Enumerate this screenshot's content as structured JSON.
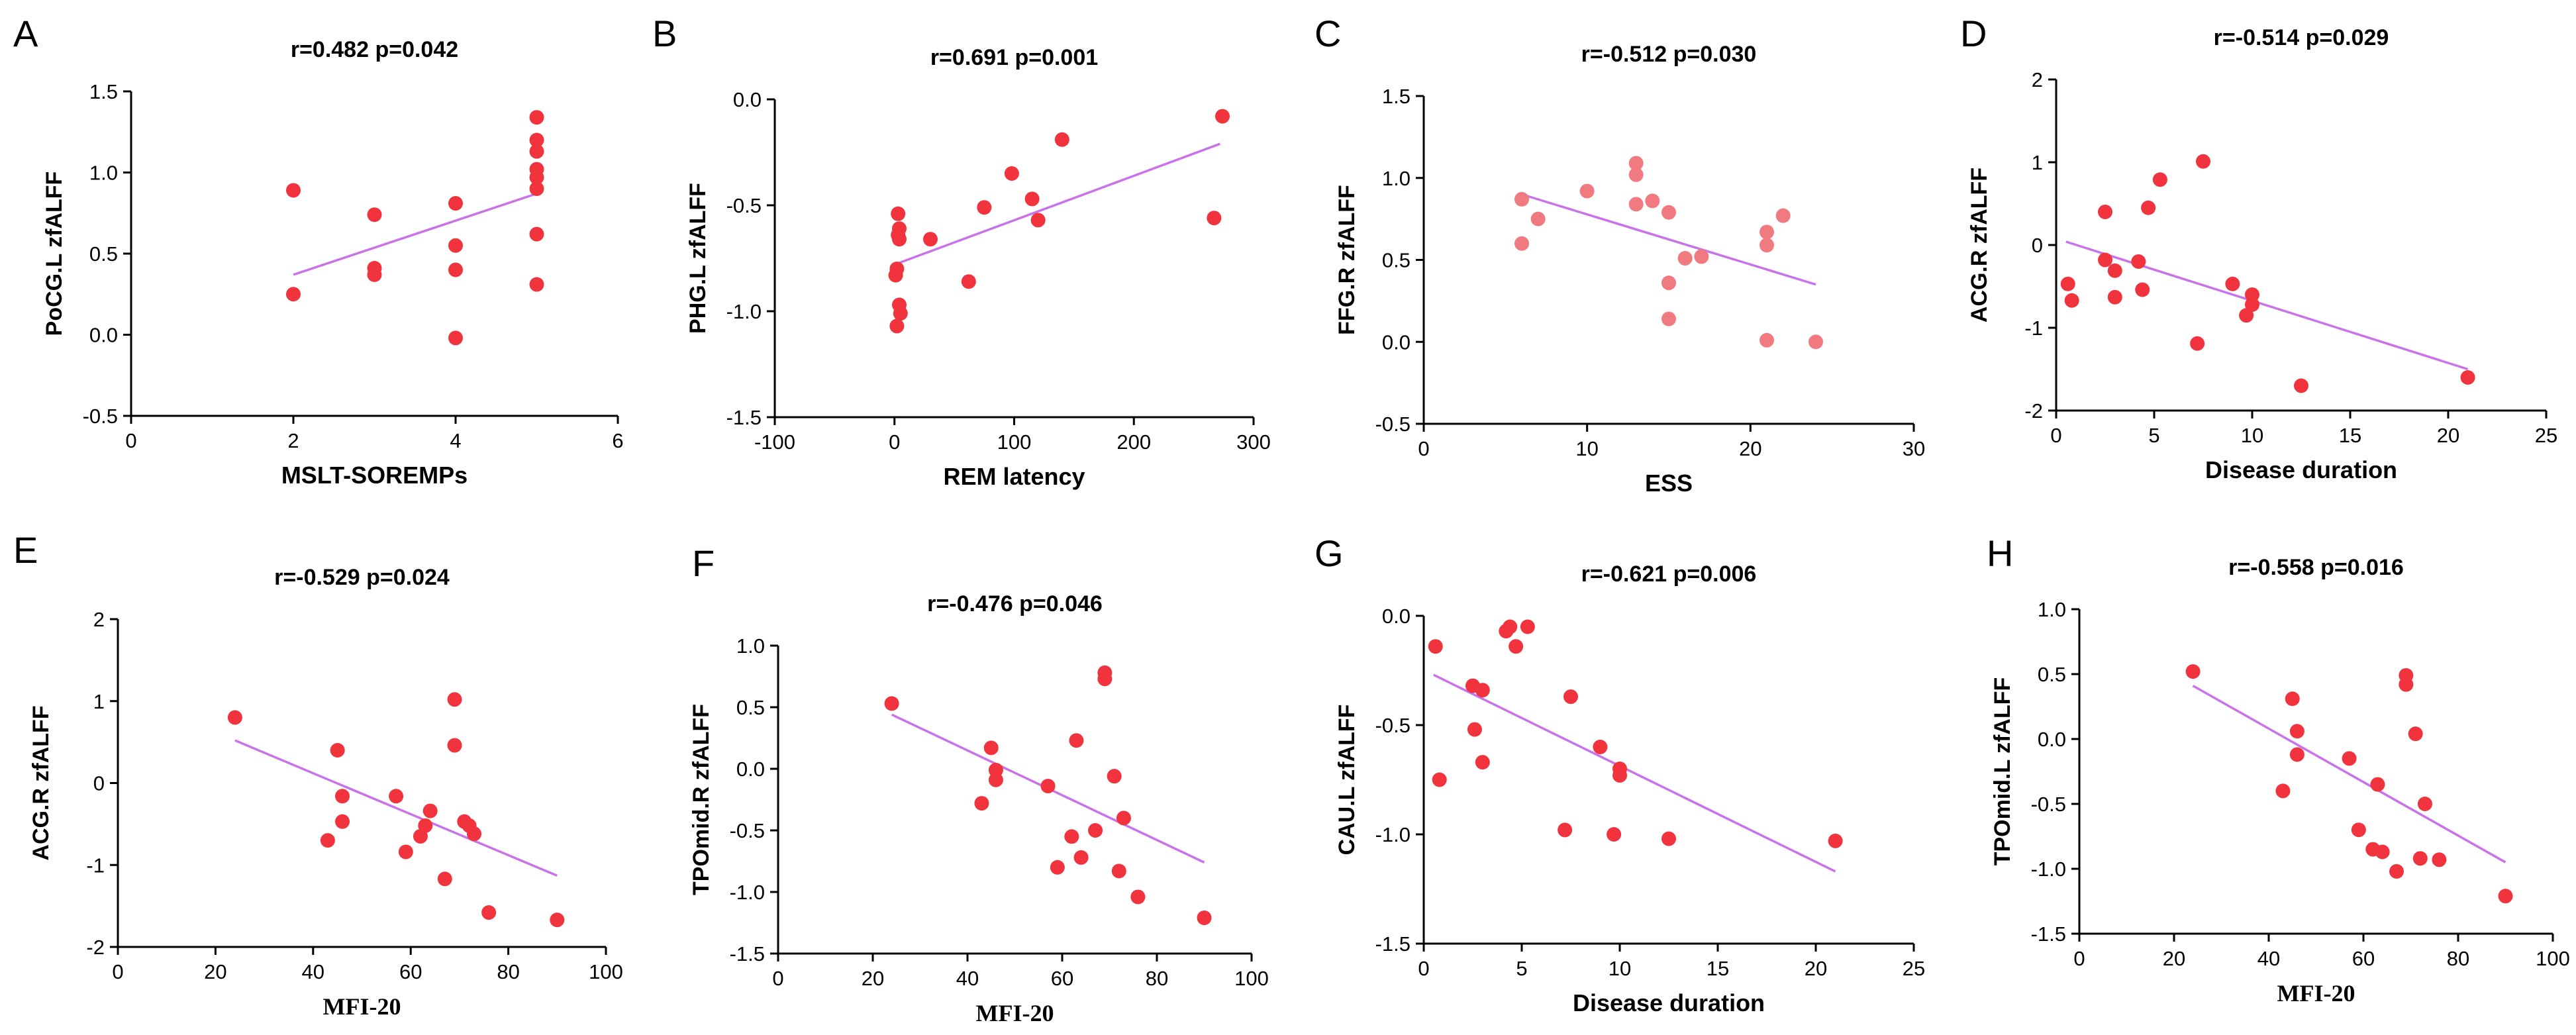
{
  "figure": {
    "panels_count": 8,
    "regression_line_color": "#c873e8",
    "point_color_dark": "#f0333d",
    "point_color_light": "#f07a80"
  },
  "chart_data": [
    {
      "panel": "A",
      "type": "scatter",
      "title": "r=0.482  p=0.042",
      "xlabel": "MSLT-SOREMPs",
      "ylabel": "PoCG.L  zfALFF",
      "xlim": [
        0,
        6
      ],
      "ylim": [
        -0.5,
        1.5
      ],
      "xticks": [
        0,
        2,
        4,
        6
      ],
      "xtick_labels": [
        "0",
        "2",
        "4",
        "6"
      ],
      "yticks": [
        -0.5,
        0.0,
        0.5,
        1.0,
        1.5
      ],
      "ytick_labels": [
        "-0.5",
        "0.0",
        "0.5",
        "1.0",
        "1.5"
      ],
      "x": [
        2,
        2,
        3,
        3,
        3,
        4,
        4,
        4,
        4,
        5,
        5,
        5,
        5,
        5,
        5,
        5,
        5
      ],
      "y": [
        0.89,
        0.25,
        0.74,
        0.41,
        0.37,
        0.81,
        0.55,
        0.4,
        -0.02,
        1.34,
        1.2,
        1.13,
        1.02,
        0.97,
        0.9,
        0.62,
        0.31
      ],
      "fit": [
        [
          2,
          0.37
        ],
        [
          5,
          0.87
        ]
      ],
      "point_color": "#f0333d"
    },
    {
      "panel": "B",
      "type": "scatter",
      "title": "r=0.691  p=0.001",
      "xlabel": "REM latency",
      "ylabel": "PHG.L   zfALFF",
      "xlim": [
        -100,
        300
      ],
      "ylim": [
        -1.5,
        0.0
      ],
      "xticks": [
        -100,
        0,
        100,
        200,
        300
      ],
      "xtick_labels": [
        "-100",
        "0",
        "100",
        "200",
        "300"
      ],
      "yticks": [
        -1.5,
        -1.0,
        -0.5,
        0.0
      ],
      "ytick_labels": [
        "-1.5",
        "-1.0",
        "-0.5",
        "0.0"
      ],
      "x": [
        3,
        4,
        4,
        2,
        1,
        4,
        5,
        2,
        3,
        30,
        62,
        75,
        98,
        115,
        120,
        140,
        267,
        274
      ],
      "y": [
        -0.54,
        -0.61,
        -0.66,
        -0.8,
        -0.83,
        -0.97,
        -1.01,
        -1.07,
        -0.64,
        -0.66,
        -0.86,
        -0.51,
        -0.35,
        -0.47,
        -0.57,
        -0.19,
        -0.56,
        -0.08
      ],
      "fit": [
        [
          0,
          -0.78
        ],
        [
          272,
          -0.21
        ]
      ],
      "point_color": "#f0333d"
    },
    {
      "panel": "C",
      "type": "scatter",
      "title": "r=-0.512  p=0.030",
      "xlabel": "ESS",
      "ylabel": "FFG.R zfALFF",
      "xlim": [
        0,
        30
      ],
      "ylim": [
        -0.5,
        1.5
      ],
      "xticks": [
        0,
        10,
        20,
        30
      ],
      "xtick_labels": [
        "0",
        "10",
        "20",
        "30"
      ],
      "yticks": [
        -0.5,
        0.0,
        0.5,
        1.0,
        1.5
      ],
      "ytick_labels": [
        "-0.5",
        "0.0",
        "0.5",
        "1.0",
        "1.5"
      ],
      "x": [
        6,
        6,
        7,
        10,
        13,
        13,
        13,
        14,
        15,
        15,
        15,
        16,
        17,
        21,
        21,
        21,
        22,
        24
      ],
      "y": [
        0.87,
        0.6,
        0.75,
        0.92,
        1.09,
        1.02,
        0.84,
        0.86,
        0.79,
        0.36,
        0.14,
        0.51,
        0.52,
        0.67,
        0.59,
        0.01,
        0.77,
        0.0
      ],
      "fit": [
        [
          6,
          0.9
        ],
        [
          24,
          0.35
        ]
      ],
      "point_color": "#f07a80"
    },
    {
      "panel": "D",
      "type": "scatter",
      "title": "r=-0.514  p=0.029",
      "xlabel": "Disease duration",
      "ylabel": "ACG.R   zfALFF",
      "xlim": [
        0,
        25
      ],
      "ylim": [
        -2,
        2
      ],
      "xticks": [
        0,
        5,
        10,
        15,
        20,
        25
      ],
      "xtick_labels": [
        "0",
        "5",
        "10",
        "15",
        "20",
        "25"
      ],
      "yticks": [
        -2,
        -1,
        0,
        1,
        2
      ],
      "ytick_labels": [
        "-2",
        "-1",
        "0",
        "1",
        "2"
      ],
      "x": [
        0.6,
        0.8,
        2.5,
        2.5,
        3,
        3,
        4.2,
        4.4,
        4.7,
        5.3,
        7.2,
        7.5,
        9,
        9.7,
        10,
        10,
        12.5,
        21
      ],
      "y": [
        -0.47,
        -0.67,
        0.4,
        -0.18,
        -0.31,
        -0.63,
        -0.2,
        -0.54,
        0.45,
        0.79,
        -1.19,
        1.01,
        -0.47,
        -0.85,
        -0.6,
        -0.72,
        -1.7,
        -1.6
      ],
      "fit": [
        [
          0.5,
          0.04
        ],
        [
          21,
          -1.5
        ]
      ],
      "point_color": "#f0333d"
    },
    {
      "panel": "E",
      "type": "scatter",
      "title": "r=-0.529  p=0.024",
      "xlabel": "MFI-20",
      "ylabel": "ACG.R   zfALFF",
      "xlim": [
        0,
        100
      ],
      "ylim": [
        -2,
        2
      ],
      "xticks": [
        0,
        20,
        40,
        60,
        80,
        100
      ],
      "xtick_labels": [
        "0",
        "20",
        "40",
        "60",
        "80",
        "100"
      ],
      "yticks": [
        -2,
        -1,
        0,
        1,
        2
      ],
      "ytick_labels": [
        "-2",
        "-1",
        "0",
        "1",
        "2"
      ],
      "x": [
        24,
        43,
        45,
        46,
        46,
        57,
        59,
        62,
        63,
        64,
        67,
        69,
        69,
        71,
        72,
        73,
        76,
        90
      ],
      "y": [
        0.8,
        -0.7,
        0.4,
        -0.47,
        -0.16,
        -0.16,
        -0.84,
        -0.65,
        -0.52,
        -0.34,
        -1.17,
        1.02,
        0.46,
        -0.47,
        -0.52,
        -0.62,
        -1.58,
        -1.67
      ],
      "fit": [
        [
          24,
          0.52
        ],
        [
          90,
          -1.13
        ]
      ],
      "point_color": "#f0333d"
    },
    {
      "panel": "F",
      "type": "scatter",
      "title": "r=-0.476  p=0.046",
      "xlabel": "MFI-20",
      "ylabel": "TPOmid.R   zfALFF",
      "xlim": [
        0,
        100
      ],
      "ylim": [
        -1.5,
        1.0
      ],
      "xticks": [
        0,
        20,
        40,
        60,
        80,
        100
      ],
      "xtick_labels": [
        "0",
        "20",
        "40",
        "60",
        "80",
        "100"
      ],
      "yticks": [
        -1.5,
        -1.0,
        -0.5,
        0.0,
        0.5,
        1.0
      ],
      "ytick_labels": [
        "-1.5",
        "-1.0",
        "-0.5",
        "0.0",
        "0.5",
        "1.0"
      ],
      "x": [
        24,
        43,
        45,
        46,
        46,
        57,
        59,
        62,
        63,
        64,
        67,
        69,
        69,
        71,
        72,
        73,
        76,
        90
      ],
      "y": [
        0.53,
        -0.28,
        0.17,
        -0.01,
        -0.09,
        -0.14,
        -0.8,
        -0.55,
        0.23,
        -0.72,
        -0.5,
        0.78,
        0.73,
        -0.06,
        -0.83,
        -0.4,
        -1.04,
        -1.21
      ],
      "fit": [
        [
          24,
          0.44
        ],
        [
          90,
          -0.76
        ]
      ],
      "point_color": "#f0333d"
    },
    {
      "panel": "G",
      "type": "scatter",
      "title": "r=-0.621  p=0.006",
      "xlabel": "Disease duration",
      "ylabel": "CAU.L   zfALFF",
      "xlim": [
        0,
        25
      ],
      "ylim": [
        -1.5,
        0.0
      ],
      "xticks": [
        0,
        5,
        10,
        15,
        20,
        25
      ],
      "xtick_labels": [
        "0",
        "5",
        "10",
        "15",
        "20",
        "25"
      ],
      "yticks": [
        -1.5,
        -1.0,
        -0.5,
        0.0
      ],
      "ytick_labels": [
        "-1.5",
        "-1.0",
        "-0.5",
        "0.0"
      ],
      "x": [
        0.6,
        0.8,
        2.5,
        2.6,
        3,
        3,
        4.2,
        4.4,
        4.7,
        5.3,
        7.2,
        7.5,
        9,
        9.7,
        10,
        10,
        12.5,
        21
      ],
      "y": [
        -0.14,
        -0.75,
        -0.32,
        -0.52,
        -0.34,
        -0.67,
        -0.07,
        -0.05,
        -0.14,
        -0.05,
        -0.98,
        -0.37,
        -0.6,
        -1.0,
        -0.7,
        -0.73,
        -1.02,
        -1.03
      ],
      "fit": [
        [
          0.5,
          -0.27
        ],
        [
          21,
          -1.17
        ]
      ],
      "point_color": "#f0333d"
    },
    {
      "panel": "H",
      "type": "scatter",
      "title": "r=-0.558  p=0.016",
      "xlabel": "MFI-20",
      "ylabel": "TPOmid.L   zfALFF",
      "xlim": [
        0,
        100
      ],
      "ylim": [
        -1.5,
        1.0
      ],
      "xticks": [
        0,
        20,
        40,
        60,
        80,
        100
      ],
      "xtick_labels": [
        "0",
        "20",
        "40",
        "60",
        "80",
        "100"
      ],
      "yticks": [
        -1.5,
        -1.0,
        -0.5,
        0.0,
        0.5,
        1.0
      ],
      "ytick_labels": [
        "-1.5",
        "-1.0",
        "-0.5",
        "0.0",
        "0.5",
        "1.0"
      ],
      "x": [
        24,
        43,
        45,
        46,
        46,
        57,
        59,
        62,
        63,
        64,
        67,
        69,
        69,
        71,
        72,
        73,
        76,
        90
      ],
      "y": [
        0.52,
        -0.4,
        0.31,
        0.06,
        -0.12,
        -0.15,
        -0.7,
        -0.85,
        -0.35,
        -0.87,
        -1.02,
        0.49,
        0.42,
        0.04,
        -0.92,
        -0.5,
        -0.93,
        -1.21
      ],
      "fit": [
        [
          24,
          0.41
        ],
        [
          90,
          -0.95
        ]
      ],
      "point_color": "#f0333d"
    }
  ]
}
